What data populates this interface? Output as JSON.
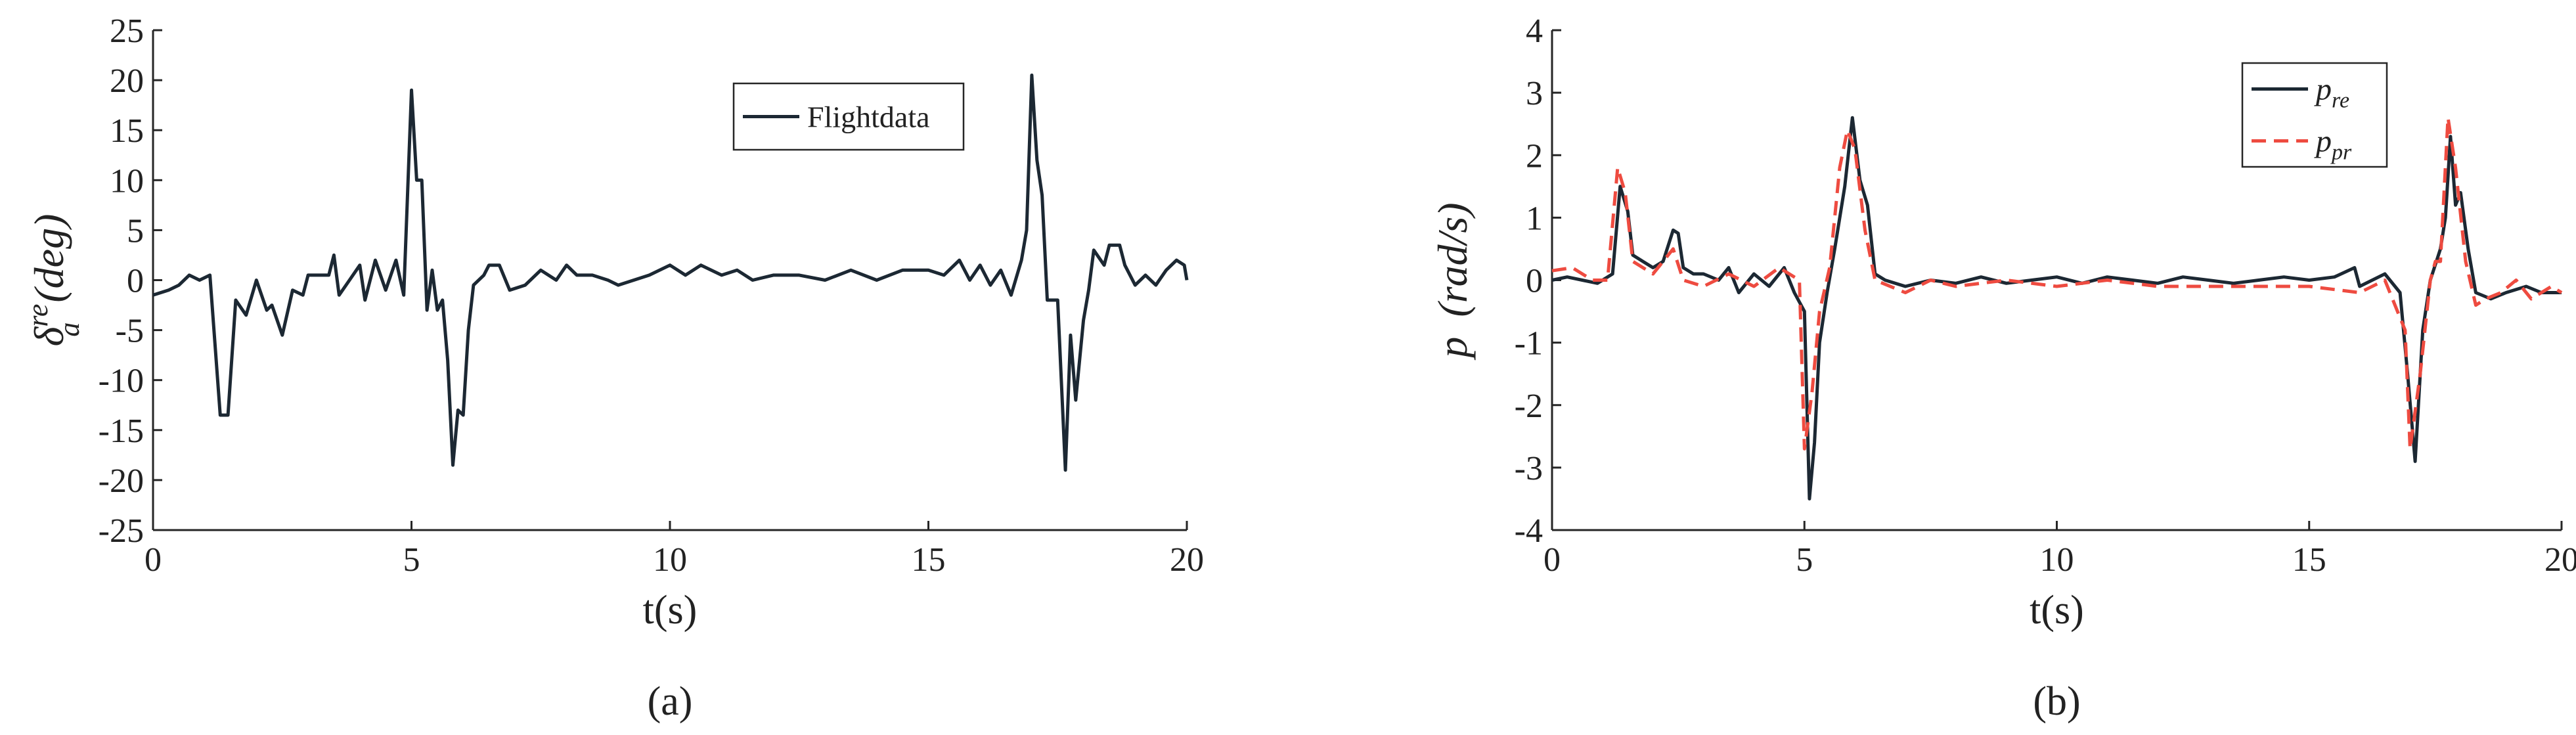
{
  "chart_data": [
    {
      "type": "line",
      "caption": "(a)",
      "xlabel": "t(s)",
      "ylabel": {
        "symbol": "δ",
        "sub": "a",
        "sup": "re",
        "unit": "(deg)"
      },
      "xlim": [
        0,
        20
      ],
      "xticks": [
        0,
        5,
        10,
        15,
        20
      ],
      "ylim": [
        -25,
        25
      ],
      "yticks": [
        -25,
        -20,
        -15,
        -10,
        -5,
        0,
        5,
        10,
        15,
        20,
        25
      ],
      "legend": "upper right",
      "series": [
        {
          "name": "Flightdata",
          "color": "#1c2833",
          "dash": false,
          "x": [
            0,
            0.3,
            0.5,
            0.7,
            0.9,
            1.1,
            1.3,
            1.45,
            1.6,
            1.8,
            2,
            2.2,
            2.3,
            2.5,
            2.7,
            2.9,
            3,
            3.2,
            3.4,
            3.5,
            3.6,
            3.8,
            4,
            4.1,
            4.3,
            4.5,
            4.7,
            4.85,
            5,
            5.1,
            5.2,
            5.3,
            5.4,
            5.5,
            5.6,
            5.7,
            5.8,
            5.9,
            6,
            6.1,
            6.2,
            6.4,
            6.5,
            6.7,
            6.9,
            7.2,
            7.5,
            7.8,
            8,
            8.2,
            8.5,
            8.8,
            9,
            9.3,
            9.6,
            10,
            10.3,
            10.6,
            11,
            11.3,
            11.6,
            12,
            12.5,
            13,
            13.5,
            14,
            14.5,
            15,
            15.3,
            15.6,
            15.8,
            16,
            16.2,
            16.4,
            16.6,
            16.8,
            16.9,
            17,
            17.1,
            17.2,
            17.3,
            17.5,
            17.65,
            17.75,
            17.85,
            18,
            18.1,
            18.2,
            18.4,
            18.5,
            18.7,
            18.8,
            19,
            19.2,
            19.4,
            19.6,
            19.8,
            19.95,
            20
          ],
          "values": [
            -1.5,
            -1,
            -0.5,
            0.5,
            0,
            0.5,
            -13.5,
            -13.5,
            -2,
            -3.5,
            0,
            -3,
            -2.5,
            -5.5,
            -1,
            -1.5,
            0.5,
            0.5,
            0.5,
            2.5,
            -1.5,
            0,
            1.5,
            -2,
            2,
            -1,
            2,
            -1.5,
            19,
            10,
            10,
            -3,
            1,
            -3,
            -2,
            -8,
            -18.5,
            -13,
            -13.5,
            -5,
            -0.5,
            0.5,
            1.5,
            1.5,
            -1,
            -0.5,
            1,
            0,
            1.5,
            0.5,
            0.5,
            0,
            -0.5,
            0,
            0.5,
            1.5,
            0.5,
            1.5,
            0.5,
            1,
            0,
            0.5,
            0.5,
            0,
            1,
            0,
            1,
            1,
            0.5,
            2,
            0,
            1.5,
            -0.5,
            1,
            -1.5,
            2,
            5,
            20.5,
            12,
            8.5,
            -2,
            -2,
            -19,
            -5.5,
            -12,
            -4,
            -1,
            3,
            1.5,
            3.5,
            3.5,
            1.5,
            -0.5,
            0.5,
            -0.5,
            1,
            2,
            1.5,
            0
          ]
        }
      ]
    },
    {
      "type": "line",
      "caption": "(b)",
      "xlabel": "t(s)",
      "ylabel": {
        "symbol": "p",
        "unit": "(rad/s)"
      },
      "xlim": [
        0,
        20
      ],
      "xticks": [
        0,
        5,
        10,
        15,
        20
      ],
      "ylim": [
        -4,
        4
      ],
      "yticks": [
        -4,
        -3,
        -2,
        -1,
        0,
        1,
        2,
        3,
        4
      ],
      "legend": "upper right",
      "series": [
        {
          "name": "p",
          "name_sub": "re",
          "color": "#1c2833",
          "dash": false,
          "x": [
            0,
            0.3,
            0.6,
            0.9,
            1.2,
            1.35,
            1.5,
            1.6,
            1.8,
            2,
            2.2,
            2.4,
            2.5,
            2.6,
            2.8,
            3,
            3.3,
            3.5,
            3.7,
            4,
            4.3,
            4.6,
            4.8,
            5,
            5.1,
            5.2,
            5.3,
            5.45,
            5.6,
            5.8,
            5.95,
            6.1,
            6.25,
            6.4,
            6.6,
            7,
            7.5,
            8,
            8.5,
            9,
            9.5,
            10,
            10.5,
            11,
            11.5,
            12,
            12.5,
            13,
            13.5,
            14,
            14.5,
            15,
            15.5,
            15.9,
            16,
            16.5,
            16.8,
            16.95,
            17.1,
            17.25,
            17.4,
            17.6,
            17.7,
            17.8,
            17.9,
            18,
            18.15,
            18.3,
            18.6,
            18.9,
            19.3,
            19.6,
            20
          ],
          "values": [
            0,
            0.05,
            0,
            -0.05,
            0.1,
            1.5,
            1.1,
            0.4,
            0.3,
            0.2,
            0.3,
            0.8,
            0.75,
            0.2,
            0.1,
            0.1,
            0,
            0.2,
            -0.2,
            0.1,
            -0.1,
            0.2,
            -0.2,
            -0.5,
            -3.5,
            -2.6,
            -1,
            -0.2,
            0.5,
            1.5,
            2.6,
            1.6,
            1.2,
            0.1,
            0,
            -0.1,
            0,
            -0.05,
            0.05,
            -0.05,
            0,
            0.05,
            -0.05,
            0.05,
            0,
            -0.05,
            0.05,
            0,
            -0.05,
            0,
            0.05,
            0,
            0.05,
            0.2,
            -0.1,
            0.1,
            -0.2,
            -1.5,
            -2.9,
            -0.8,
            0,
            0.5,
            1,
            2.3,
            1.2,
            1.4,
            0.5,
            -0.2,
            -0.3,
            -0.2,
            -0.1,
            -0.2,
            -0.2
          ]
        },
        {
          "name": "p",
          "name_sub": "pr",
          "color": "#ee4b40",
          "dash": true,
          "x": [
            0,
            0.4,
            0.8,
            1.1,
            1.3,
            1.45,
            1.6,
            2,
            2.4,
            2.6,
            3,
            3.5,
            4,
            4.5,
            4.9,
            5,
            5.15,
            5.3,
            5.5,
            5.7,
            5.85,
            6,
            6.2,
            6.4,
            7,
            7.5,
            8,
            9,
            10,
            11,
            12,
            13,
            14,
            15,
            16,
            16.5,
            16.9,
            17,
            17.2,
            17.4,
            17.5,
            17.6,
            17.75,
            17.9,
            18.1,
            18.3,
            18.5,
            18.8,
            19.1,
            19.4,
            19.8,
            20
          ],
          "values": [
            0.15,
            0.2,
            0,
            0,
            1.8,
            1.4,
            0.3,
            0.1,
            0.5,
            0,
            -0.1,
            0.1,
            -0.1,
            0.2,
            0,
            -2.7,
            -1.8,
            -0.5,
            0.2,
            1.8,
            2.4,
            2.1,
            0.8,
            0,
            -0.2,
            0,
            -0.1,
            0,
            -0.1,
            0,
            -0.1,
            -0.1,
            -0.1,
            -0.1,
            -0.2,
            0,
            -0.8,
            -2.7,
            -1.5,
            0,
            0.3,
            0.3,
            2.6,
            1.8,
            0.3,
            -0.4,
            -0.3,
            -0.2,
            0,
            -0.3,
            -0.1,
            -0.2
          ]
        }
      ]
    }
  ]
}
